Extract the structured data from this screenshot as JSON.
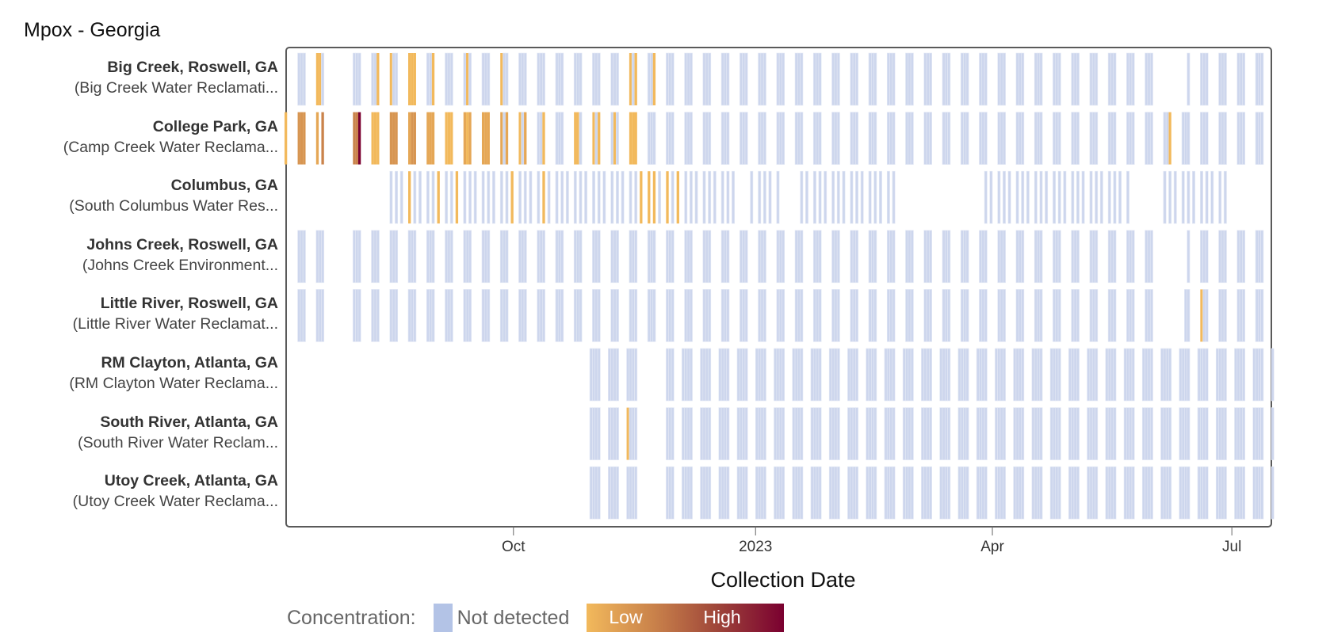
{
  "chart_data": {
    "type": "heatmap",
    "title": "Mpox - Georgia",
    "xlabel": "Collection Date",
    "origin_date": "2022-07-03",
    "x_range_days": [
      3.3,
      377.7
    ],
    "x_ticks": [
      {
        "label": "Oct",
        "day": 90
      },
      {
        "label": "2023",
        "day": 182
      },
      {
        "label": "Apr",
        "day": 272
      },
      {
        "label": "Jul",
        "day": 363
      }
    ],
    "legend": {
      "title": "Concentration:",
      "not_detected": "Not detected",
      "low": "Low",
      "high": "High",
      "placement": "bottom"
    },
    "colors": {
      "not_detected": "#cdd6ed",
      "low": "#f2b95c",
      "mid": "#c8804a",
      "high": "#7a0030"
    },
    "level_scale": [
      1,
      10
    ],
    "sites": [
      {
        "name": "Big Creek, Roswell, GA",
        "facility": "(Big Creek Water Reclamati...",
        "weekdays": [
          1,
          2,
          3
        ],
        "range": [
          8,
          375
        ],
        "gaps": [
          [
            22,
            24
          ],
          [
            337,
            339
          ],
          [
            344,
            345
          ]
        ],
        "extra_days": [],
        "detections": [
          [
            15,
            1
          ],
          [
            16,
            1
          ],
          [
            38,
            1
          ],
          [
            43,
            1
          ],
          [
            50,
            1
          ],
          [
            51,
            1
          ],
          [
            52,
            1
          ],
          [
            59,
            1
          ],
          [
            72,
            1
          ],
          [
            85,
            1
          ],
          [
            134,
            1
          ],
          [
            136,
            1
          ],
          [
            143,
            1
          ]
        ]
      },
      {
        "name": "College Park, GA",
        "facility": "(Camp Creek Water Reclama...",
        "weekdays": [
          1,
          2,
          3
        ],
        "range": [
          8,
          375
        ],
        "gaps": [
          [
            16,
            16
          ],
          [
            22,
            24
          ]
        ],
        "extra_days": [
          3
        ],
        "detections": [
          [
            3,
            1
          ],
          [
            8,
            3
          ],
          [
            9,
            3
          ],
          [
            10,
            3
          ],
          [
            15,
            2
          ],
          [
            17,
            4
          ],
          [
            29,
            4
          ],
          [
            30,
            4
          ],
          [
            31,
            10
          ],
          [
            36,
            1
          ],
          [
            37,
            1
          ],
          [
            38,
            1
          ],
          [
            43,
            3
          ],
          [
            44,
            3
          ],
          [
            45,
            3
          ],
          [
            50,
            2
          ],
          [
            51,
            3
          ],
          [
            52,
            3
          ],
          [
            57,
            2
          ],
          [
            58,
            2
          ],
          [
            59,
            2
          ],
          [
            64,
            1
          ],
          [
            65,
            1
          ],
          [
            66,
            1
          ],
          [
            71,
            2
          ],
          [
            72,
            1
          ],
          [
            73,
            2
          ],
          [
            78,
            2
          ],
          [
            79,
            2
          ],
          [
            80,
            2
          ],
          [
            85,
            2
          ],
          [
            87,
            2
          ],
          [
            92,
            1
          ],
          [
            94,
            2
          ],
          [
            101,
            1
          ],
          [
            113,
            1
          ],
          [
            114,
            1
          ],
          [
            120,
            1
          ],
          [
            122,
            1
          ],
          [
            128,
            1
          ],
          [
            134,
            1
          ],
          [
            135,
            1
          ],
          [
            136,
            1
          ],
          [
            339,
            1
          ]
        ]
      },
      {
        "name": "Columbus, GA",
        "facility": "(South Columbus Water Res...",
        "weekdays": [
          1,
          3,
          5
        ],
        "range": [
          43,
          360
        ],
        "gaps": [
          [
            174,
            178
          ],
          [
            191,
            198
          ],
          [
            236,
            267
          ],
          [
            325,
            334
          ]
        ],
        "extra_days": [],
        "detections": [
          [
            50,
            1
          ],
          [
            61,
            1
          ],
          [
            68,
            1
          ],
          [
            89,
            1
          ],
          [
            101,
            1
          ],
          [
            138,
            1
          ],
          [
            141,
            1
          ],
          [
            143,
            1
          ],
          [
            148,
            1
          ],
          [
            152,
            1
          ]
        ]
      },
      {
        "name": "Johns Creek, Roswell, GA",
        "facility": "(Johns Creek Environment...",
        "weekdays": [
          1,
          2,
          3
        ],
        "range": [
          8,
          375
        ],
        "gaps": [
          [
            22,
            24
          ],
          [
            337,
            339
          ],
          [
            344,
            345
          ]
        ],
        "extra_days": [],
        "detections": []
      },
      {
        "name": "Little River, Roswell, GA",
        "facility": "(Little River Water Reclamat...",
        "weekdays": [
          1,
          2,
          3
        ],
        "range": [
          8,
          375
        ],
        "gaps": [
          [
            22,
            24
          ],
          [
            337,
            339
          ],
          [
            344,
            344
          ]
        ],
        "extra_days": [],
        "detections": [
          [
            351,
            1
          ]
        ]
      },
      {
        "name": "RM Clayton, Atlanta, GA",
        "facility": "(RM Clayton Water Reclama...",
        "weekdays": [
          0,
          1,
          2,
          3
        ],
        "range": [
          119,
          378
        ],
        "gaps": [
          [
            140,
            147
          ]
        ],
        "extra_days": [],
        "detections": []
      },
      {
        "name": "South River, Atlanta, GA",
        "facility": "(South River Water Reclam...",
        "weekdays": [
          0,
          1,
          2,
          3
        ],
        "range": [
          119,
          378
        ],
        "gaps": [
          [
            140,
            147
          ]
        ],
        "extra_days": [],
        "detections": [
          [
            133,
            1
          ]
        ]
      },
      {
        "name": "Utoy Creek, Atlanta, GA",
        "facility": "(Utoy Creek Water Reclama...",
        "weekdays": [
          0,
          1,
          2,
          3
        ],
        "range": [
          119,
          378
        ],
        "gaps": [
          [
            140,
            147
          ]
        ],
        "extra_days": [],
        "detections": []
      }
    ]
  }
}
